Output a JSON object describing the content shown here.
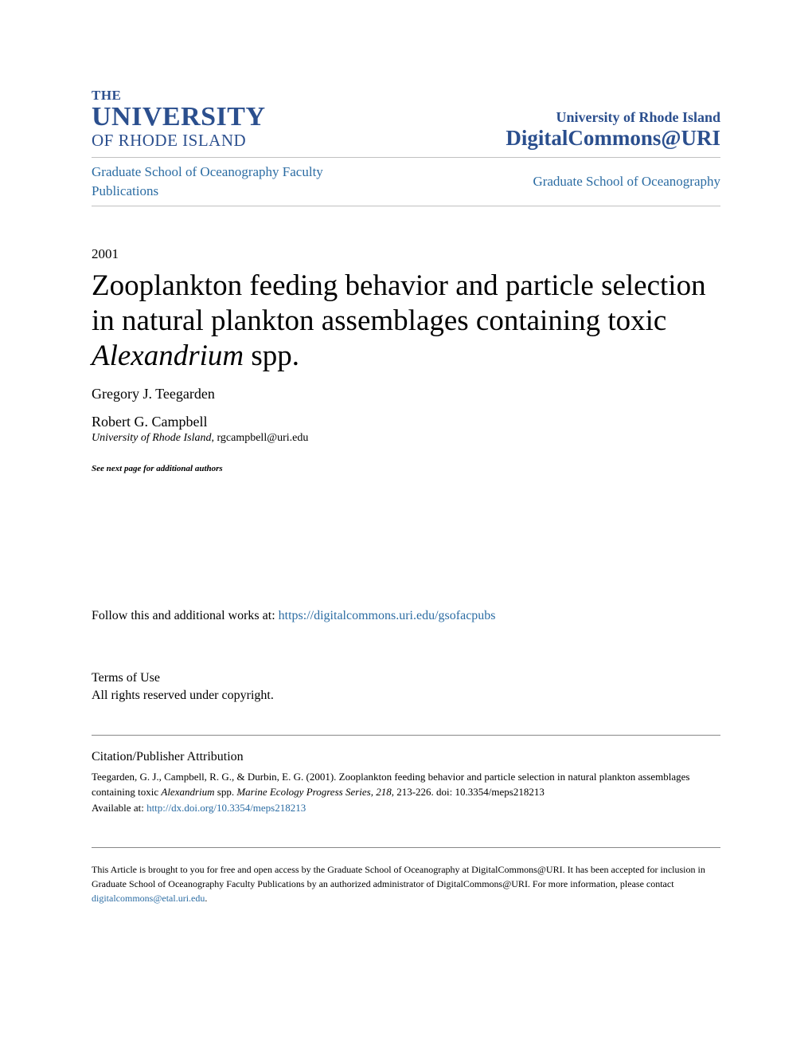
{
  "header": {
    "logo": {
      "line1": "THE",
      "line2": "UNIVERSITY",
      "line3": "OF RHODE ISLAND"
    },
    "institution": "University of Rhode Island",
    "repository": "DigitalCommons@URI"
  },
  "breadcrumb": {
    "left": "Graduate School of Oceanography Faculty Publications",
    "right": "Graduate School of Oceanography"
  },
  "year": "2001",
  "title": {
    "part1": "Zooplankton feeding behavior and particle selection in natural plankton assemblages containing toxic ",
    "italic": "Alexandrium",
    "part2": " spp."
  },
  "authors": {
    "author1": "Gregory J. Teegarden",
    "author2": "Robert G. Campbell",
    "affiliation": "University of Rhode Island",
    "email": ", rgcampbell@uri.edu"
  },
  "next_page_note": "See next page for additional authors",
  "follow": {
    "prefix": "Follow this and additional works at: ",
    "link": "https://digitalcommons.uri.edu/gsofacpubs"
  },
  "terms": {
    "heading": "Terms of Use",
    "text": "All rights reserved under copyright."
  },
  "citation": {
    "heading": "Citation/Publisher Attribution",
    "text1": "Teegarden, G. J., Campbell, R. G., & Durbin, E. G. (2001). Zooplankton feeding behavior and particle selection in natural plankton assemblages containing toxic ",
    "italic1": "Alexandrium",
    "text2": " spp. ",
    "italic2": "Marine Ecology Progress Series, 218",
    "text3": ", 213-226. doi: 10.3354/meps218213",
    "available_prefix": "Available at: ",
    "available_link": "http://dx.doi.org/10.3354/meps218213"
  },
  "footer": {
    "text1": "This Article is brought to you for free and open access by the Graduate School of Oceanography at DigitalCommons@URI. It has been accepted for inclusion in Graduate School of Oceanography Faculty Publications by an authorized administrator of DigitalCommons@URI. For more information, please contact ",
    "email": "digitalcommons@etal.uri.edu",
    "text2": "."
  },
  "colors": {
    "brand_blue": "#2b4f8e",
    "link_blue": "#2b6ca3",
    "text": "#000000",
    "divider": "#c0c0c0",
    "background": "#ffffff"
  }
}
